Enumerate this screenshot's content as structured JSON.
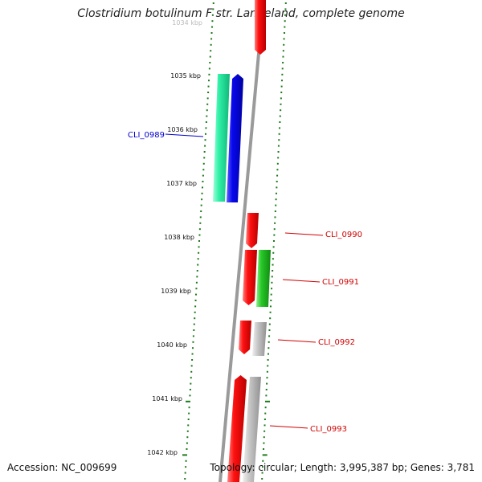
{
  "title": "Clostridium botulinum F str. Langeland, complete genome",
  "footer": {
    "accession": "Accession: NC_009699",
    "summary": "Topology: circular; Length: 3,995,387 bp; Genes: 3,781"
  },
  "colors": {
    "backbone": "#8c8c8c",
    "ruler_ticks": "#1a7a1a",
    "forward_gene": "#e00000",
    "label_red": "#d00000",
    "label_blue": "#0000cc",
    "cds_blue": "#0000e0",
    "cds_teal": "#22e8a0",
    "cds_green": "#22c022",
    "cds_grey": "#b8b8b8"
  },
  "kbp_labels": [
    "1034 kbp",
    "1035 kbp",
    "1036 kbp",
    "1037 kbp",
    "1038 kbp",
    "1039 kbp",
    "1040 kbp",
    "1041 kbp",
    "1042 kbp"
  ],
  "gene_labels": [
    {
      "text": "CLI_0989",
      "color": "blue"
    },
    {
      "text": "CLI_0990",
      "color": "red"
    },
    {
      "text": "CLI_0991",
      "color": "red"
    },
    {
      "text": "CLI_0992",
      "color": "red"
    },
    {
      "text": "CLI_0993",
      "color": "red"
    }
  ]
}
